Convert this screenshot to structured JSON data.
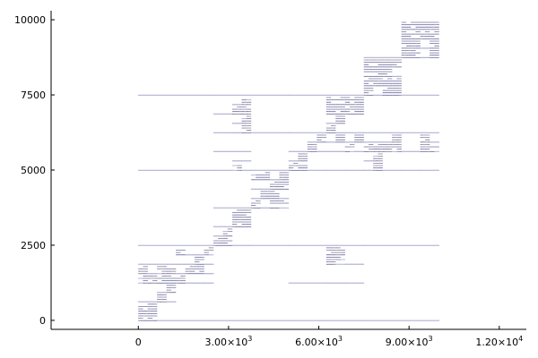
{
  "chart_data": {
    "type": "heatmap",
    "title": "",
    "xlabel": "",
    "ylabel": "",
    "x_ticks": [
      {
        "value": 0,
        "mant": "0",
        "exp": ""
      },
      {
        "value": 3000,
        "mant": "3.00×10",
        "exp": "3"
      },
      {
        "value": 6000,
        "mant": "6.00×10",
        "exp": "3"
      },
      {
        "value": 9000,
        "mant": "9.00×10",
        "exp": "3"
      },
      {
        "value": 12000,
        "mant": "1.20×10",
        "exp": "4"
      }
    ],
    "y_ticks": [
      {
        "value": 0,
        "label": "0"
      },
      {
        "value": 2500,
        "label": "2500"
      },
      {
        "value": 5000,
        "label": "5000"
      },
      {
        "value": 7500,
        "label": "7500"
      },
      {
        "value": 10000,
        "label": "10000"
      }
    ],
    "xlim": [
      -2900,
      12900
    ],
    "ylim": [
      10300,
      -300
    ],
    "matrix_size": 10000,
    "diagonal_clusters": [
      [
        0,
        700
      ],
      [
        700,
        1500
      ],
      [
        1500,
        2300
      ],
      [
        2300,
        3000
      ],
      [
        3000,
        3900
      ],
      [
        3900,
        5000
      ],
      [
        5000,
        5900
      ],
      [
        5900,
        7500
      ],
      [
        7500,
        8700
      ],
      [
        8700,
        10000
      ]
    ],
    "off_diagonal_dense_blocks": [
      [
        600,
        1600
      ],
      [
        2000,
        3000
      ],
      [
        4100,
        6300
      ],
      [
        4500,
        6700
      ],
      [
        7300,
        9800
      ],
      [
        5100,
        8700
      ],
      [
        5300,
        9200
      ],
      [
        3400,
        6800
      ],
      [
        8800,
        6300
      ],
      [
        9300,
        6000
      ],
      [
        1600,
        7700
      ],
      [
        1000,
        4900
      ],
      [
        5600,
        8400
      ],
      [
        2700,
        9100
      ],
      [
        4600,
        8800
      ],
      [
        200,
        9000
      ],
      [
        7700,
        1800
      ],
      [
        6300,
        3500
      ],
      [
        6500,
        2500
      ],
      [
        9200,
        4700
      ],
      [
        8900,
        2200
      ],
      [
        1900,
        8500
      ],
      [
        6900,
        9400
      ],
      [
        8200,
        5400
      ]
    ],
    "colors": {
      "block_light": "#efeffd",
      "block_medium": "#d5d5fa",
      "block_strong": "#b9b9f4",
      "block_border": "#aaaacc",
      "dense_brown": "#7a4a34",
      "dense_dark": "#1e1e5a",
      "axis": "#000000"
    }
  }
}
